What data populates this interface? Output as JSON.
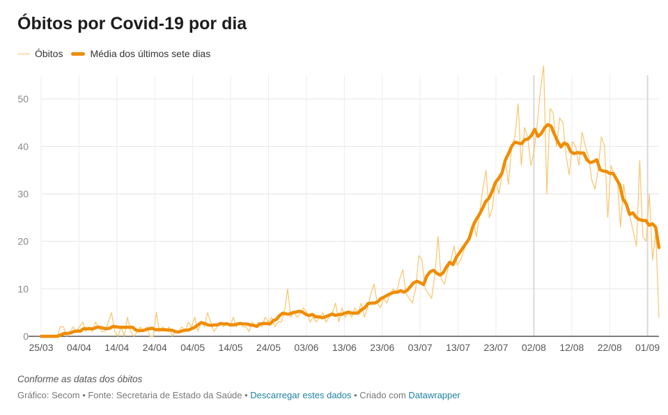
{
  "chart_data": {
    "type": "line",
    "title": "Óbitos por Covid-19 por dia",
    "xlabel": "",
    "ylabel": "",
    "legend_position": "top-left",
    "grid": true,
    "ylim": [
      0,
      55
    ],
    "y_ticks": [
      "0",
      "10",
      "20",
      "30",
      "40",
      "50"
    ],
    "x_tick_labels": [
      "25/03",
      "04/04",
      "14/04",
      "24/04",
      "04/05",
      "14/05",
      "24/05",
      "03/06",
      "13/06",
      "23/06",
      "03/07",
      "13/07",
      "23/07",
      "02/08",
      "12/08",
      "22/08",
      "01/09"
    ],
    "x_start": "2020-03-25",
    "x_end": "2020-09-04",
    "colors": {
      "daily": "#f8c46b",
      "average": "#f08c00"
    },
    "series": [
      {
        "name": "Óbitos",
        "values": [
          0,
          0,
          0,
          0,
          0,
          0,
          2,
          2,
          0,
          1,
          2,
          1,
          2,
          3,
          1,
          2,
          1,
          3,
          2,
          1,
          1,
          3,
          5,
          1,
          0,
          2,
          0,
          4,
          1,
          0,
          1,
          2,
          1,
          2,
          0,
          0,
          5,
          1,
          2,
          1,
          2,
          0,
          1,
          1,
          2,
          1,
          3,
          2,
          4,
          1,
          3,
          2,
          5,
          3,
          1,
          2,
          3,
          2,
          3,
          2,
          4,
          2,
          3,
          2,
          2,
          1,
          3,
          2,
          3,
          2,
          4,
          3,
          4,
          2,
          3,
          3,
          5,
          10,
          4,
          5,
          4,
          5,
          6,
          5,
          3,
          4,
          3,
          4,
          5,
          3,
          4,
          5,
          7,
          3,
          6,
          4,
          5,
          4,
          6,
          5,
          7,
          4,
          6,
          9,
          11,
          7,
          6,
          8,
          7,
          9,
          10,
          9,
          12,
          14,
          9,
          8,
          7,
          10,
          17,
          16,
          10,
          9,
          8,
          13,
          21,
          12,
          11,
          14,
          16,
          19,
          15,
          16,
          18,
          20,
          22,
          24,
          21,
          26,
          31,
          35,
          25,
          27,
          33,
          30,
          34,
          37,
          32,
          40,
          42,
          49,
          36,
          44,
          42,
          36,
          39,
          45,
          52,
          57,
          30,
          48,
          47,
          40,
          46,
          45,
          38,
          34,
          41,
          40,
          36,
          43,
          40,
          38,
          33,
          31,
          35,
          42,
          40,
          25,
          36,
          34,
          33,
          23,
          32,
          27,
          25,
          22,
          19,
          37,
          21,
          20,
          30,
          16,
          22,
          4
        ]
      },
      {
        "name": "Média dos últimos sete dias",
        "values": [
          0,
          0,
          0,
          0,
          0,
          0,
          0.3,
          0.6,
          0.6,
          0.7,
          1,
          1.1,
          1.1,
          1.6,
          1.6,
          1.6,
          1.6,
          1.9,
          1.9,
          1.7,
          1.6,
          1.7,
          2.1,
          2.0,
          1.9,
          1.9,
          1.9,
          1.9,
          1.9,
          1.3,
          1.2,
          1.2,
          1.4,
          1.6,
          1.7,
          1.4,
          1.4,
          1.4,
          1.4,
          1.3,
          1.3,
          1.0,
          0.9,
          1.1,
          1.3,
          1.3,
          1.6,
          1.9,
          2.4,
          2.9,
          2.7,
          2.4,
          2.3,
          2.4,
          2.4,
          2.7,
          2.6,
          2.6,
          2.4,
          2.4,
          2.6,
          2.7,
          2.6,
          2.6,
          2.4,
          2.3,
          2.1,
          2.6,
          2.7,
          2.7,
          2.6,
          3.3,
          3.6,
          4.4,
          4.9,
          4.7,
          4.7,
          5.0,
          5.1,
          5.3,
          5.1,
          4.6,
          4.4,
          4.6,
          4.1,
          4.1,
          3.9,
          4.1,
          4.4,
          4.7,
          4.4,
          4.6,
          4.6,
          4.9,
          5.1,
          4.9,
          4.9,
          4.9,
          5.6,
          6.0,
          6.9,
          7.0,
          7.0,
          7.3,
          8.0,
          8.3,
          8.7,
          9.0,
          9.3,
          9.3,
          9.6,
          9.3,
          9.7,
          10.5,
          11.3,
          11.6,
          11.3,
          10.9,
          12.7,
          13.6,
          13.9,
          13.3,
          12.9,
          13.4,
          14.6,
          15.6,
          15.1,
          16.6,
          17.6,
          18.6,
          19.6,
          20.6,
          23.0,
          24.5,
          25.6,
          26.9,
          28.4,
          29.1,
          30.6,
          32.4,
          33.3,
          34.4,
          37.1,
          38.5,
          40.1,
          40.9,
          40.7,
          40.6,
          41.4,
          41.6,
          42.3,
          43.6,
          42.1,
          42.7,
          43.9,
          44.6,
          44.3,
          42.6,
          41.1,
          39.9,
          40.7,
          40.4,
          38.9,
          38.5,
          38.7,
          38.6,
          38.6,
          37.1,
          36.6,
          36.8,
          37.2,
          35.1,
          34.8,
          34.7,
          34.3,
          34.3,
          33.1,
          31.9,
          28.9,
          27.9,
          25.7,
          26.0,
          25.1,
          24.6,
          24.4,
          24.4,
          23.4,
          23.7,
          23.0,
          18.7
        ]
      }
    ]
  },
  "texts": {
    "note": "Conforme as datas dos óbitos",
    "footer_prefix": "Gráfico: Secom • Fonte: Secretaria de Estado da Saúde • ",
    "footer_link1": "Descarregar estes dados",
    "footer_middle": " • Criado com ",
    "footer_link2": "Datawrapper"
  }
}
